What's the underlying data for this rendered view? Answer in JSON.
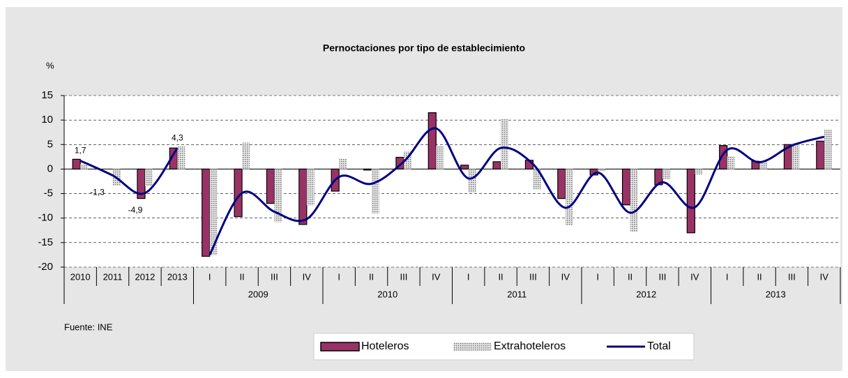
{
  "chart_data": {
    "type": "bar",
    "title": "Pernoctaciones por tipo de establecimiento",
    "y_label": "%",
    "source": "Fuente: INE",
    "categories": [
      "2010",
      "2011",
      "2012",
      "2013",
      "I",
      "II",
      "III",
      "IV",
      "I",
      "II",
      "III",
      "IV",
      "I",
      "II",
      "III",
      "IV",
      "I",
      "II",
      "III",
      "IV",
      "I",
      "II",
      "III",
      "IV"
    ],
    "groups": [
      {
        "label": null,
        "span": 4
      },
      {
        "label": "2009",
        "span": 4
      },
      {
        "label": "2010",
        "span": 4
      },
      {
        "label": "2011",
        "span": 4
      },
      {
        "label": "2012",
        "span": 4
      },
      {
        "label": "2013",
        "span": 4
      }
    ],
    "series": [
      {
        "name": "Hoteleros",
        "color": "#993366",
        "values": [
          2.0,
          0,
          -6.0,
          4.3,
          -17.8,
          -9.7,
          -7.0,
          -11.3,
          -4.5,
          -0.2,
          2.4,
          11.5,
          0.8,
          1.5,
          1.8,
          -6.0,
          -1.2,
          -7.3,
          -3.2,
          -13.0,
          4.8,
          1.6,
          5.0,
          5.7
        ]
      },
      {
        "name": "Extrahoteleros",
        "color": "#a0a0a0",
        "values": [
          1.0,
          -3.3,
          -3.5,
          4.6,
          -17.6,
          5.4,
          -10.8,
          -7.4,
          2.1,
          -9.1,
          3.6,
          4.7,
          -4.8,
          10.2,
          -4.1,
          -11.4,
          -0.5,
          -12.8,
          -2.0,
          -1.1,
          2.6,
          1.7,
          5.3,
          8.0
        ]
      },
      {
        "name": "Total",
        "type": "line",
        "color": "#000080",
        "values": [
          1.7,
          -1.3,
          -4.9,
          4.3,
          -17.5,
          -4.9,
          -8.7,
          -10.2,
          -1.6,
          -3.0,
          1.5,
          8.3,
          -1.9,
          4.3,
          1.0,
          -7.9,
          -0.7,
          -8.9,
          -2.7,
          -7.8,
          3.9,
          1.4,
          4.8,
          6.6
        ],
        "value_labels": [
          "1,7",
          "-1,3",
          "-4,9",
          "4,3",
          null,
          null,
          null,
          null,
          null,
          null,
          null,
          null,
          null,
          null,
          null,
          null,
          null,
          null,
          null,
          null,
          null,
          null,
          null,
          null
        ]
      }
    ],
    "ylim": [
      -20,
      15
    ],
    "yticks": [
      -20,
      -15,
      -10,
      -5,
      0,
      5,
      10,
      15
    ],
    "grid": true
  }
}
